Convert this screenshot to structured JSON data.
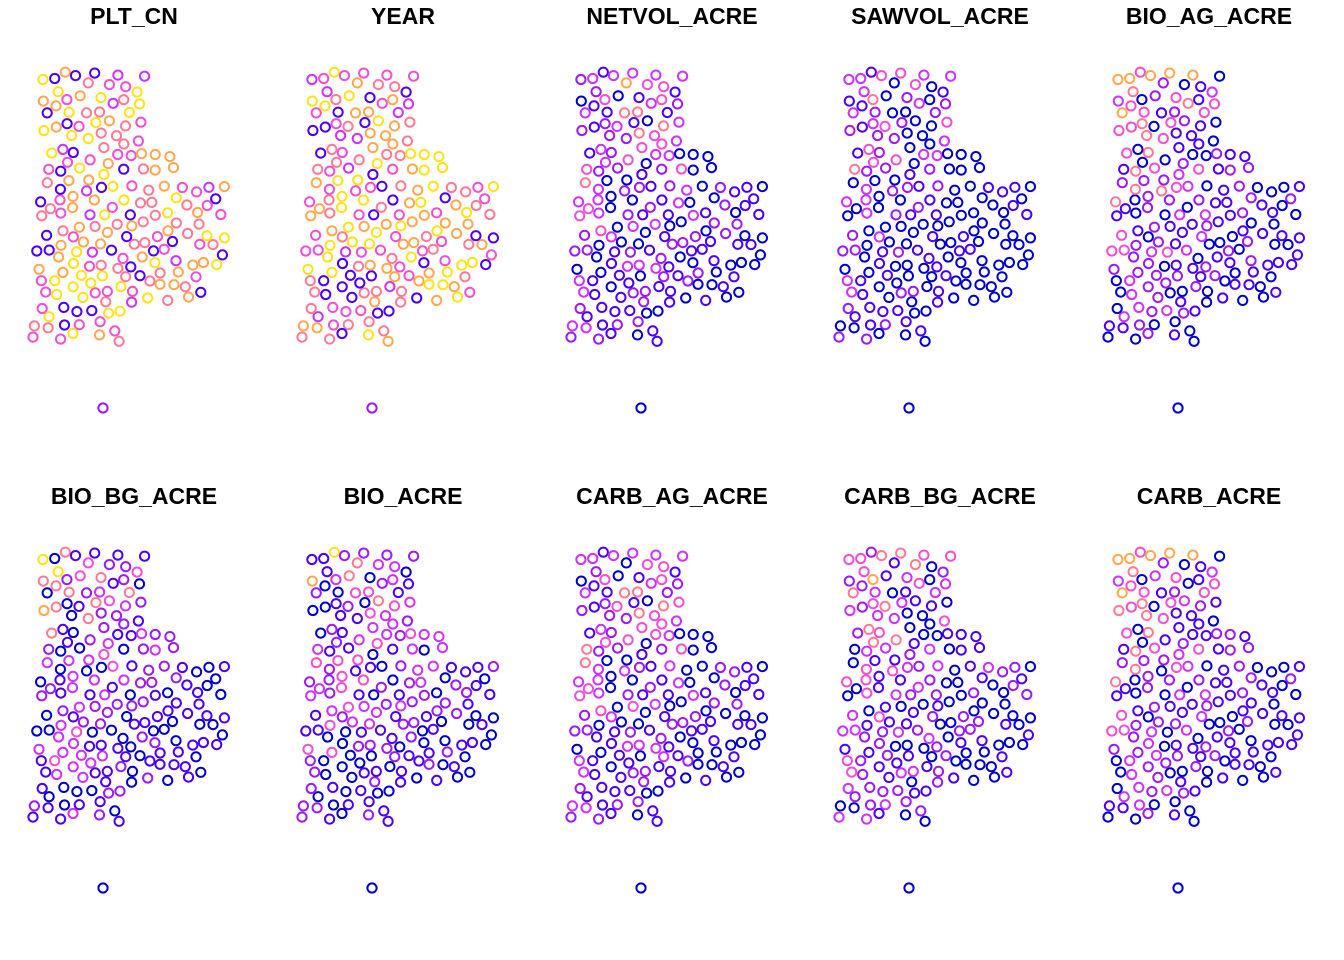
{
  "chart_data": {
    "type": "scatter",
    "layout": "small-multiples",
    "rows": 2,
    "columns": 5,
    "panels": [
      {
        "title": "PLT_CN"
      },
      {
        "title": "YEAR"
      },
      {
        "title": "NETVOL_ACRE"
      },
      {
        "title": "SAWVOL_ACRE"
      },
      {
        "title": "BIO_AG_ACRE"
      },
      {
        "title": "BIO_BG_ACRE"
      },
      {
        "title": "BIO_ACRE"
      },
      {
        "title": "CARB_AG_ACRE"
      },
      {
        "title": "CARB_BG_ACRE"
      },
      {
        "title": "CARB_ACRE"
      }
    ],
    "color_scale": [
      "#0000CC",
      "#4B00FF",
      "#9A1BFF",
      "#CB33FF",
      "#F050D2",
      "#FF7B94",
      "#FFA850",
      "#FFE31A"
    ],
    "marker": "open-circle",
    "axes": false
  }
}
